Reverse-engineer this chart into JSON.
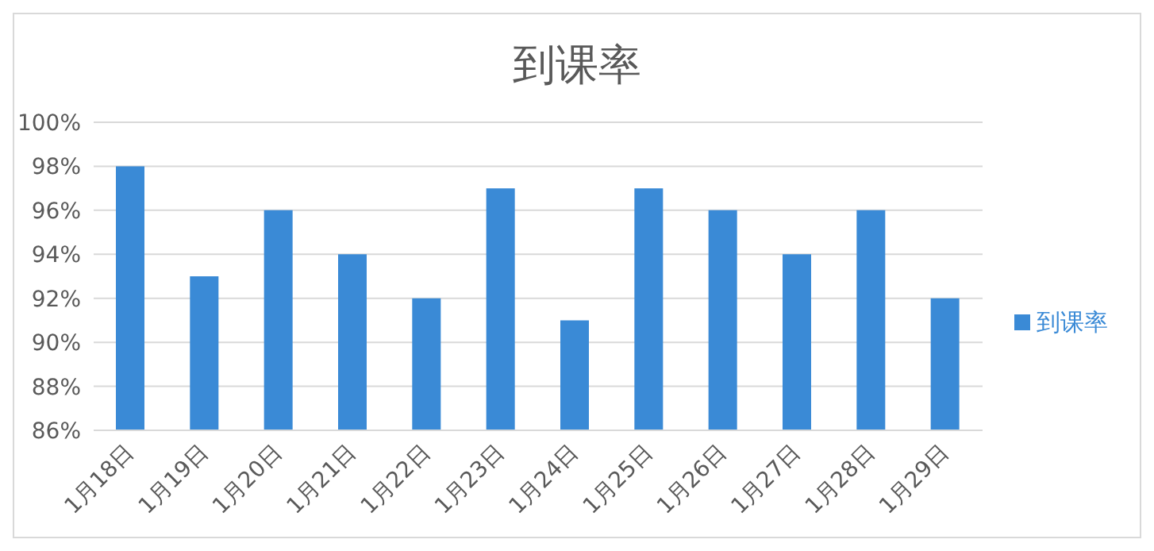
{
  "chart_data": {
    "type": "bar",
    "title": "到课率",
    "categories": [
      "1月18日",
      "1月19日",
      "1月20日",
      "1月21日",
      "1月22日",
      "1月23日",
      "1月24日",
      "1月25日",
      "1月26日",
      "1月27日",
      "1月28日",
      "1月29日"
    ],
    "series": [
      {
        "name": "到课率",
        "color": "#3a8ad6",
        "values": [
          98,
          93,
          96,
          94,
          92,
          97,
          91,
          97,
          96,
          94,
          96,
          92
        ]
      }
    ],
    "ylim": [
      86,
      100
    ],
    "yticks": [
      {
        "value": 86,
        "label": "86%"
      },
      {
        "value": 88,
        "label": "88%"
      },
      {
        "value": 90,
        "label": "90%"
      },
      {
        "value": 92,
        "label": "92%"
      },
      {
        "value": 94,
        "label": "94%"
      },
      {
        "value": 96,
        "label": "96%"
      },
      {
        "value": 98,
        "label": "98%"
      },
      {
        "value": 100,
        "label": "100%"
      }
    ],
    "grid": "y",
    "legend": "right"
  }
}
